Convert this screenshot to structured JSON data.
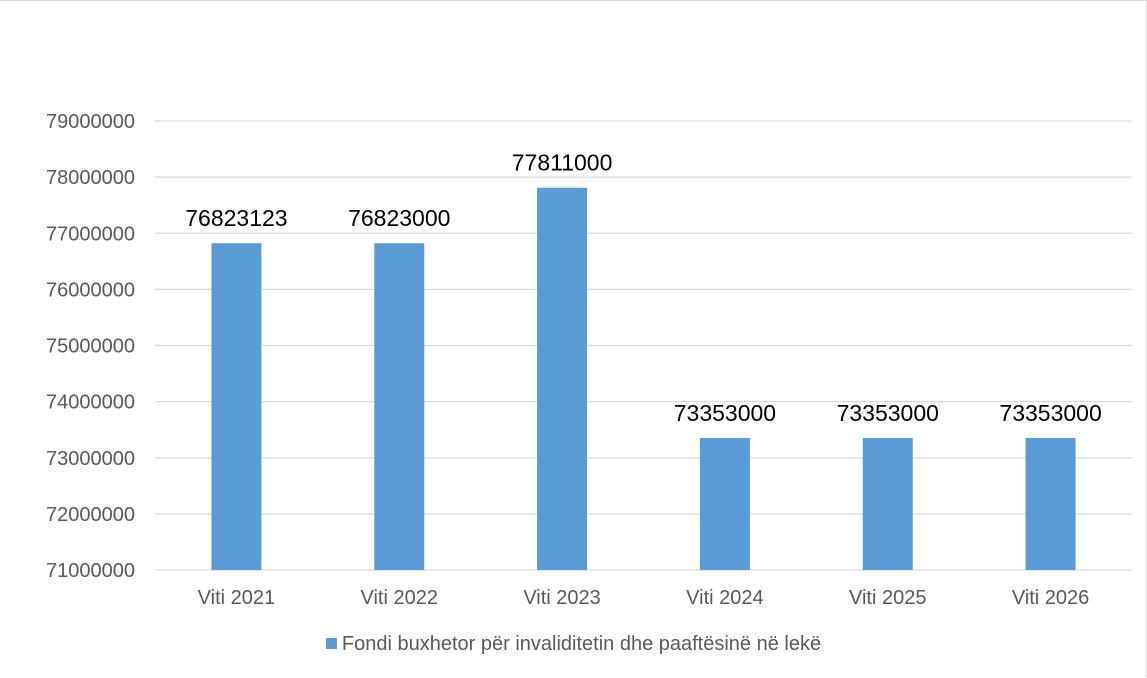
{
  "chart_data": {
    "type": "bar",
    "categories": [
      "Viti 2021",
      "Viti 2022",
      "Viti 2023",
      "Viti 2024",
      "Viti 2025",
      "Viti 2026"
    ],
    "series": [
      {
        "name": "Fondi buxhetor për invaliditetin dhe paaftësinë në lekë",
        "values": [
          76823123,
          76823000,
          77811000,
          73353000,
          73353000,
          73353000
        ],
        "color": "#5b9bd5"
      }
    ],
    "title": "",
    "xlabel": "",
    "ylabel": "",
    "ylim": [
      71000000,
      79000000
    ],
    "yticks": [
      "71000000",
      "72000000",
      "73000000",
      "74000000",
      "75000000",
      "76000000",
      "77000000",
      "78000000",
      "79000000"
    ],
    "data_labels": [
      "76823123",
      "76823000",
      "77811000",
      "73353000",
      "73353000",
      "73353000"
    ],
    "grid": true,
    "legend_position": "bottom"
  }
}
